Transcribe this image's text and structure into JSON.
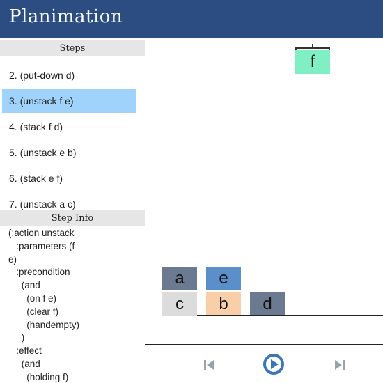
{
  "header": {
    "title": "Planimation"
  },
  "steps_panel": {
    "heading": "Steps",
    "items": [
      {
        "label": "2. (put-down d)",
        "selected": false
      },
      {
        "label": "3. (unstack f e)",
        "selected": true
      },
      {
        "label": "4. (stack f d)",
        "selected": false
      },
      {
        "label": "5. (unstack e b)",
        "selected": false
      },
      {
        "label": "6. (stack e f)",
        "selected": false
      },
      {
        "label": "7. (unstack a c)",
        "selected": false
      }
    ]
  },
  "step_info": {
    "heading": "Step Info",
    "text": "(:action unstack\n   :parameters (f\ne)\n   :precondition\n     (and\n       (on f e)\n       (clear f)\n       (handempty)\n     )\n   :effect\n     (and\n       (holding f)"
  },
  "blocks": [
    {
      "label": "f",
      "color": "#80f0c4"
    },
    {
      "label": "a",
      "color": "#6b7a91"
    },
    {
      "label": "e",
      "color": "#5a8fc9"
    },
    {
      "label": "c",
      "color": "#dcdcdc"
    },
    {
      "label": "b",
      "color": "#f8cfa9"
    },
    {
      "label": "d",
      "color": "#6b7a91"
    }
  ],
  "controls": {
    "previous": "previous-icon",
    "play": "play-icon",
    "next": "next-icon",
    "accent": "#3a76b8"
  }
}
